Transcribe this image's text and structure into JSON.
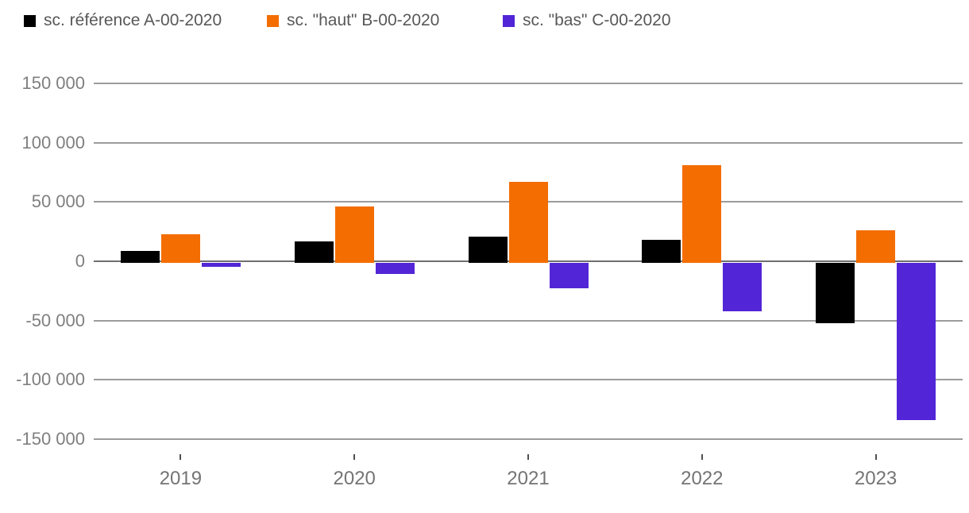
{
  "chart_data": {
    "type": "bar",
    "categories": [
      "2019",
      "2020",
      "2021",
      "2022",
      "2023"
    ],
    "series": [
      {
        "name": "sc. référence A-00-2020",
        "color": "#000000",
        "values": [
          9000,
          17000,
          21000,
          18000,
          -52000
        ]
      },
      {
        "name": "sc. \"haut\" B-00-2020",
        "color": "#F36D00",
        "values": [
          23000,
          46000,
          67000,
          81000,
          26000
        ]
      },
      {
        "name": "sc. \"bas\" C-00-2020",
        "color": "#5226D6",
        "values": [
          -5000,
          -11000,
          -23000,
          -42000,
          -134000
        ]
      }
    ],
    "ylim": [
      -150000,
      150000
    ],
    "ytick_step": 50000,
    "ytick_labels": [
      "150 000",
      "100 000",
      "50 000",
      "0",
      "-50 000",
      "-100 000",
      "-150 000"
    ],
    "grid": "horizontal",
    "legend_position": "top-left",
    "number_format": "space-thousands"
  },
  "colors": {
    "background": "#ffffff",
    "gridline": "#9C9C9C",
    "zero_line": "#6F6F6F",
    "axis_label_text": "#7F7F7F",
    "year_label_text": "#747474",
    "legend_text": "#585858",
    "x_tick": "#4F4F4F"
  }
}
